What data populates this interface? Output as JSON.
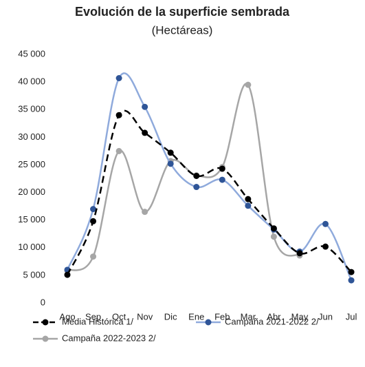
{
  "chart_data": {
    "type": "line",
    "title": "Evolución de la superficie sembrada",
    "subtitle": "(Hectáreas)",
    "categories": [
      "Ago",
      "Sep",
      "Oct",
      "Nov",
      "Dic",
      "Ene",
      "Feb",
      "Mar",
      "Abr",
      "May",
      "Jun",
      "Jul"
    ],
    "series": [
      {
        "name": "Media Histórica 1/",
        "color": "#000000",
        "dashed": true,
        "values": [
          5100,
          14800,
          34000,
          30800,
          27200,
          23000,
          24300,
          18800,
          13500,
          9000,
          10200,
          5600
        ]
      },
      {
        "name": "Campaña 2021-2022 2/",
        "color": "#8faadc",
        "marker_color": "#2f5597",
        "values": [
          6000,
          17000,
          40700,
          35500,
          25200,
          21000,
          22300,
          17600,
          13300,
          9300,
          14300,
          4100
        ]
      },
      {
        "name": "Campaña 2022-2023 2/",
        "color": "#a6a6a6",
        "values": [
          5900,
          8400,
          27500,
          16500,
          25700,
          23100,
          24600,
          39500,
          12000,
          8600,
          null,
          null
        ]
      }
    ],
    "ylim": [
      0,
      45000
    ],
    "yticks": [
      0,
      {
        "value": 5000,
        "label": "5 000"
      },
      {
        "value": 10000,
        "label": "10 000"
      },
      {
        "value": 15000,
        "label": "15 000"
      },
      {
        "value": 20000,
        "label": "20 000"
      },
      {
        "value": 25000,
        "label": "25 000"
      },
      {
        "value": 30000,
        "label": "30 000"
      },
      {
        "value": 35000,
        "label": "35 000"
      },
      {
        "value": 40000,
        "label": "40 000"
      },
      {
        "value": 45000,
        "label": "45 000"
      }
    ]
  }
}
